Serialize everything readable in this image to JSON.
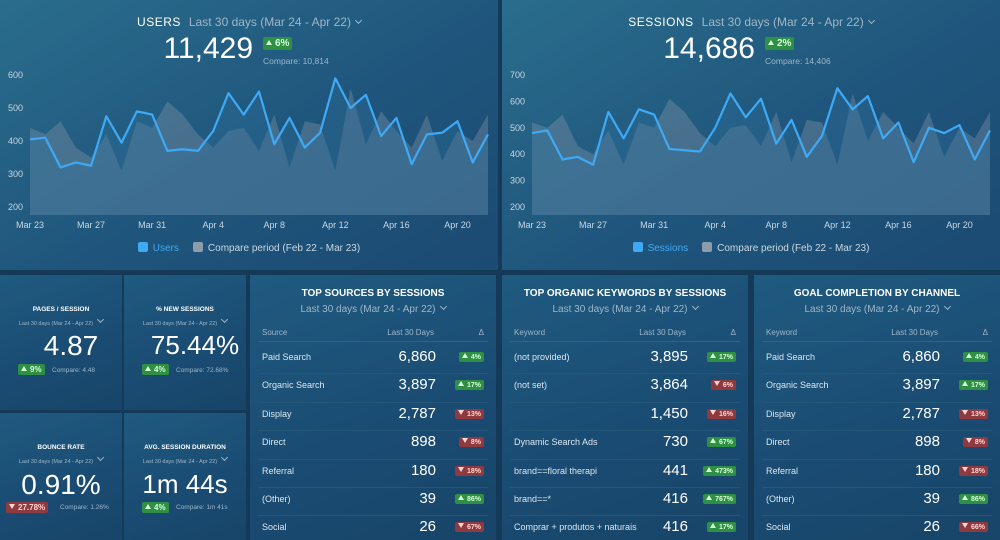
{
  "chart_data": [
    {
      "type": "line",
      "title": "USERS",
      "period": "Last 30 days (Mar 24 - Apr 22)",
      "total": "11,429",
      "change": "6%",
      "change_direction": "up",
      "compare": "Compare: 10,814",
      "categories": [
        "Mar 23",
        null,
        null,
        null,
        "Mar 27",
        null,
        null,
        null,
        "Mar 31",
        null,
        null,
        null,
        "Apr 4",
        null,
        null,
        null,
        "Apr 8",
        null,
        null,
        null,
        "Apr 12",
        null,
        null,
        null,
        "Apr 16",
        null,
        null,
        null,
        "Apr 20",
        null,
        null
      ],
      "ylim": [
        200,
        600
      ],
      "yticks": [
        200,
        300,
        400,
        500,
        600
      ],
      "series": [
        {
          "name": "Users",
          "color": "#3ea9f5",
          "values": [
            405,
            410,
            320,
            335,
            325,
            475,
            395,
            490,
            480,
            370,
            375,
            370,
            430,
            545,
            480,
            550,
            390,
            470,
            380,
            425,
            590,
            500,
            540,
            415,
            470,
            330,
            420,
            425,
            460,
            335,
            420
          ]
        },
        {
          "name": "Compare period (Feb 22 - Mar 23)",
          "color": "#8c9cab",
          "values": [
            440,
            420,
            460,
            380,
            350,
            420,
            310,
            460,
            440,
            520,
            480,
            420,
            380,
            430,
            440,
            370,
            480,
            320,
            460,
            450,
            310,
            560,
            390,
            490,
            430,
            380,
            480,
            340,
            430,
            400,
            480
          ]
        }
      ]
    },
    {
      "type": "line",
      "title": "SESSIONS",
      "period": "Last 30 days (Mar 24 - Apr 22)",
      "total": "14,686",
      "change": "2%",
      "change_direction": "up",
      "compare": "Compare: 14,406",
      "categories": [
        "Mar 23",
        null,
        null,
        null,
        "Mar 27",
        null,
        null,
        null,
        "Mar 31",
        null,
        null,
        null,
        "Apr 4",
        null,
        null,
        null,
        "Apr 8",
        null,
        null,
        null,
        "Apr 12",
        null,
        null,
        null,
        "Apr 16",
        null,
        null,
        null,
        "Apr 20",
        null,
        null
      ],
      "ylim": [
        200,
        700
      ],
      "yticks": [
        200,
        300,
        400,
        500,
        600,
        700
      ],
      "series": [
        {
          "name": "Sessions",
          "color": "#3ea9f5",
          "values": [
            480,
            490,
            380,
            390,
            360,
            560,
            460,
            570,
            550,
            420,
            415,
            410,
            500,
            630,
            540,
            610,
            440,
            530,
            390,
            470,
            650,
            570,
            620,
            460,
            520,
            370,
            500,
            480,
            510,
            380,
            490
          ]
        },
        {
          "name": "Compare period (Feb 22 - Mar 23)",
          "color": "#8c9cab",
          "values": [
            520,
            500,
            550,
            430,
            400,
            490,
            360,
            520,
            500,
            610,
            560,
            480,
            430,
            500,
            510,
            430,
            560,
            370,
            530,
            520,
            360,
            630,
            450,
            560,
            500,
            440,
            560,
            390,
            500,
            460,
            560
          ]
        }
      ]
    }
  ],
  "metrics": [
    {
      "title": "PAGES / SESSION",
      "period": "Last 30 days (Mar 24 - Apr 22)",
      "value": "4.87",
      "change": "9%",
      "direction": "up",
      "compare": "Compare: 4.48"
    },
    {
      "title": "% NEW SESSIONS",
      "period": "Last 30 days (Mar 24 - Apr 22)",
      "value": "75.44%",
      "change": "4%",
      "direction": "up",
      "compare": "Compare: 72.68%"
    },
    {
      "title": "BOUNCE RATE",
      "period": "Last 30 days (Mar 24 - Apr 22)",
      "value": "0.91%",
      "change": "27.78%",
      "direction": "down",
      "compare": "Compare: 1.26%"
    },
    {
      "title": "AVG. SESSION DURATION",
      "period": "Last 30 days (Mar 24 - Apr 22)",
      "value": "1m 44s",
      "change": "4%",
      "direction": "up",
      "compare": "Compare: 1m 41s"
    }
  ],
  "tables": [
    {
      "title": "TOP SOURCES BY SESSIONS",
      "period": "Last 30 days (Mar 24 - Apr 22)",
      "columns": [
        "Source",
        "Last 30 Days",
        "Δ"
      ],
      "rows": [
        {
          "label": "Paid Search",
          "value": "6,860",
          "change": "4%",
          "direction": "up"
        },
        {
          "label": "Organic Search",
          "value": "3,897",
          "change": "17%",
          "direction": "up"
        },
        {
          "label": "Display",
          "value": "2,787",
          "change": "13%",
          "direction": "down"
        },
        {
          "label": "Direct",
          "value": "898",
          "change": "8%",
          "direction": "down"
        },
        {
          "label": "Referral",
          "value": "180",
          "change": "18%",
          "direction": "down"
        },
        {
          "label": "(Other)",
          "value": "39",
          "change": "86%",
          "direction": "up"
        },
        {
          "label": "Social",
          "value": "26",
          "change": "67%",
          "direction": "down"
        }
      ]
    },
    {
      "title": "TOP ORGANIC KEYWORDS BY SESSIONS",
      "period": "Last 30 days (Mar 24 - Apr 22)",
      "columns": [
        "Keyword",
        "Last 30 Days",
        "Δ"
      ],
      "rows": [
        {
          "label": "(not provided)",
          "value": "3,895",
          "change": "17%",
          "direction": "up"
        },
        {
          "label": "(not set)",
          "value": "3,864",
          "change": "6%",
          "direction": "down"
        },
        {
          "label": null,
          "value": "1,450",
          "change": "16%",
          "direction": "down"
        },
        {
          "label": "Dynamic Search Ads",
          "value": "730",
          "change": "67%",
          "direction": "up"
        },
        {
          "label": "brand==floral therapi",
          "value": "441",
          "change": "473%",
          "direction": "up"
        },
        {
          "label": "brand==*",
          "value": "416",
          "change": "767%",
          "direction": "up"
        },
        {
          "label": "Comprar + produtos + naturais",
          "value": "416",
          "change": "17%",
          "direction": "up"
        }
      ]
    },
    {
      "title": "GOAL COMPLETION BY CHANNEL",
      "period": "Last 30 days (Mar 24 - Apr 22)",
      "columns": [
        "Keyword",
        "Last 30 Days",
        "Δ"
      ],
      "rows": [
        {
          "label": "Paid Search",
          "value": "6,860",
          "change": "4%",
          "direction": "up"
        },
        {
          "label": "Organic Search",
          "value": "3,897",
          "change": "17%",
          "direction": "up"
        },
        {
          "label": "Display",
          "value": "2,787",
          "change": "13%",
          "direction": "down"
        },
        {
          "label": "Direct",
          "value": "898",
          "change": "8%",
          "direction": "down"
        },
        {
          "label": "Referral",
          "value": "180",
          "change": "18%",
          "direction": "down"
        },
        {
          "label": "(Other)",
          "value": "39",
          "change": "86%",
          "direction": "up"
        },
        {
          "label": "Social",
          "value": "26",
          "change": "66%",
          "direction": "down"
        }
      ]
    }
  ]
}
